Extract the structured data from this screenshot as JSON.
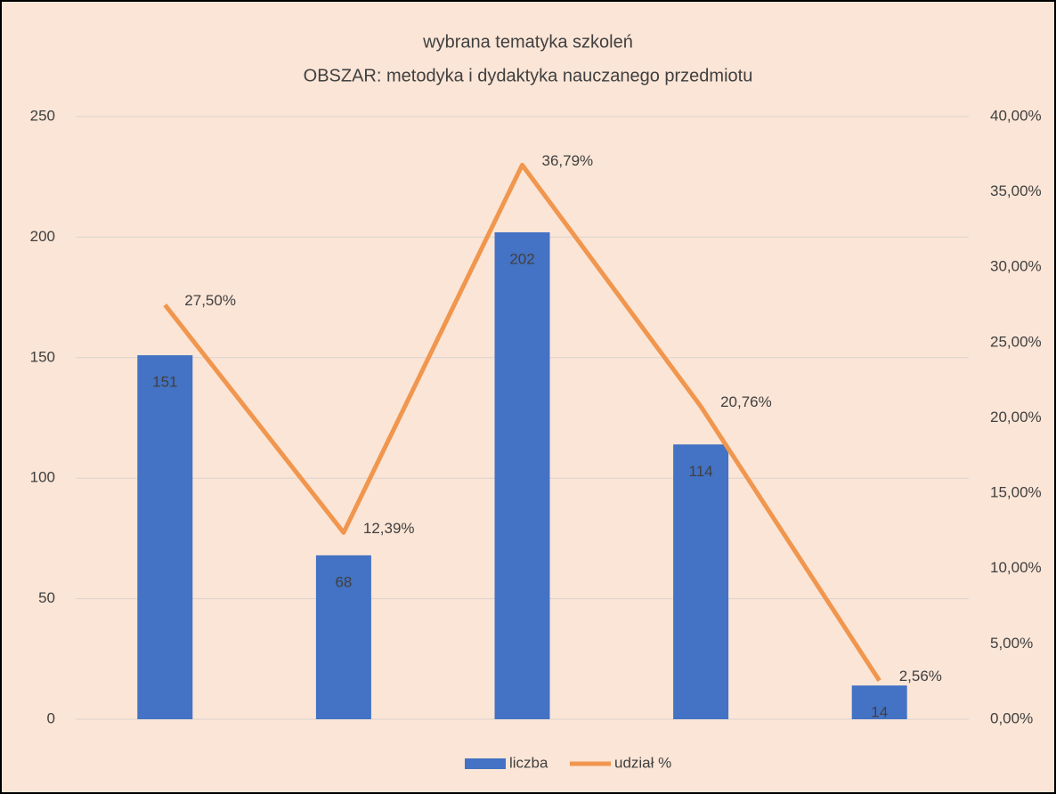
{
  "chart_data": {
    "type": "bar-line",
    "title": "wybrana tematyka szkoleń",
    "subtitle": "OBSZAR: metodyka i dydaktyka nauczanego przedmiotu",
    "categories": [
      null,
      null,
      null,
      null,
      null
    ],
    "series": [
      {
        "name": "liczba",
        "type": "bar",
        "color": "#4472c4",
        "values": [
          151,
          68,
          202,
          114,
          14
        ]
      },
      {
        "name": "udział %",
        "type": "line",
        "axis": "y2",
        "color": "#f0964e",
        "values": [
          27.5,
          12.39,
          36.79,
          20.76,
          2.56
        ],
        "value_labels": [
          "27,50%",
          "12,39%",
          "36,79%",
          "20,76%",
          "2,56%"
        ]
      }
    ],
    "ylim": [
      0,
      250
    ],
    "yticks": [
      0,
      50,
      100,
      150,
      200,
      250
    ],
    "y2lim": [
      0,
      40
    ],
    "y2ticks": [
      {
        "value": 0,
        "label": "0,00%"
      },
      {
        "value": 5,
        "label": "5,00%"
      },
      {
        "value": 10,
        "label": "10,00%"
      },
      {
        "value": 15,
        "label": "15,00%"
      },
      {
        "value": 20,
        "label": "20,00%"
      },
      {
        "value": 25,
        "label": "25,00%"
      },
      {
        "value": 30,
        "label": "30,00%"
      },
      {
        "value": 35,
        "label": "35,00%"
      },
      {
        "value": 40,
        "label": "40,00%"
      }
    ],
    "grid": true,
    "legend": "bottom"
  }
}
